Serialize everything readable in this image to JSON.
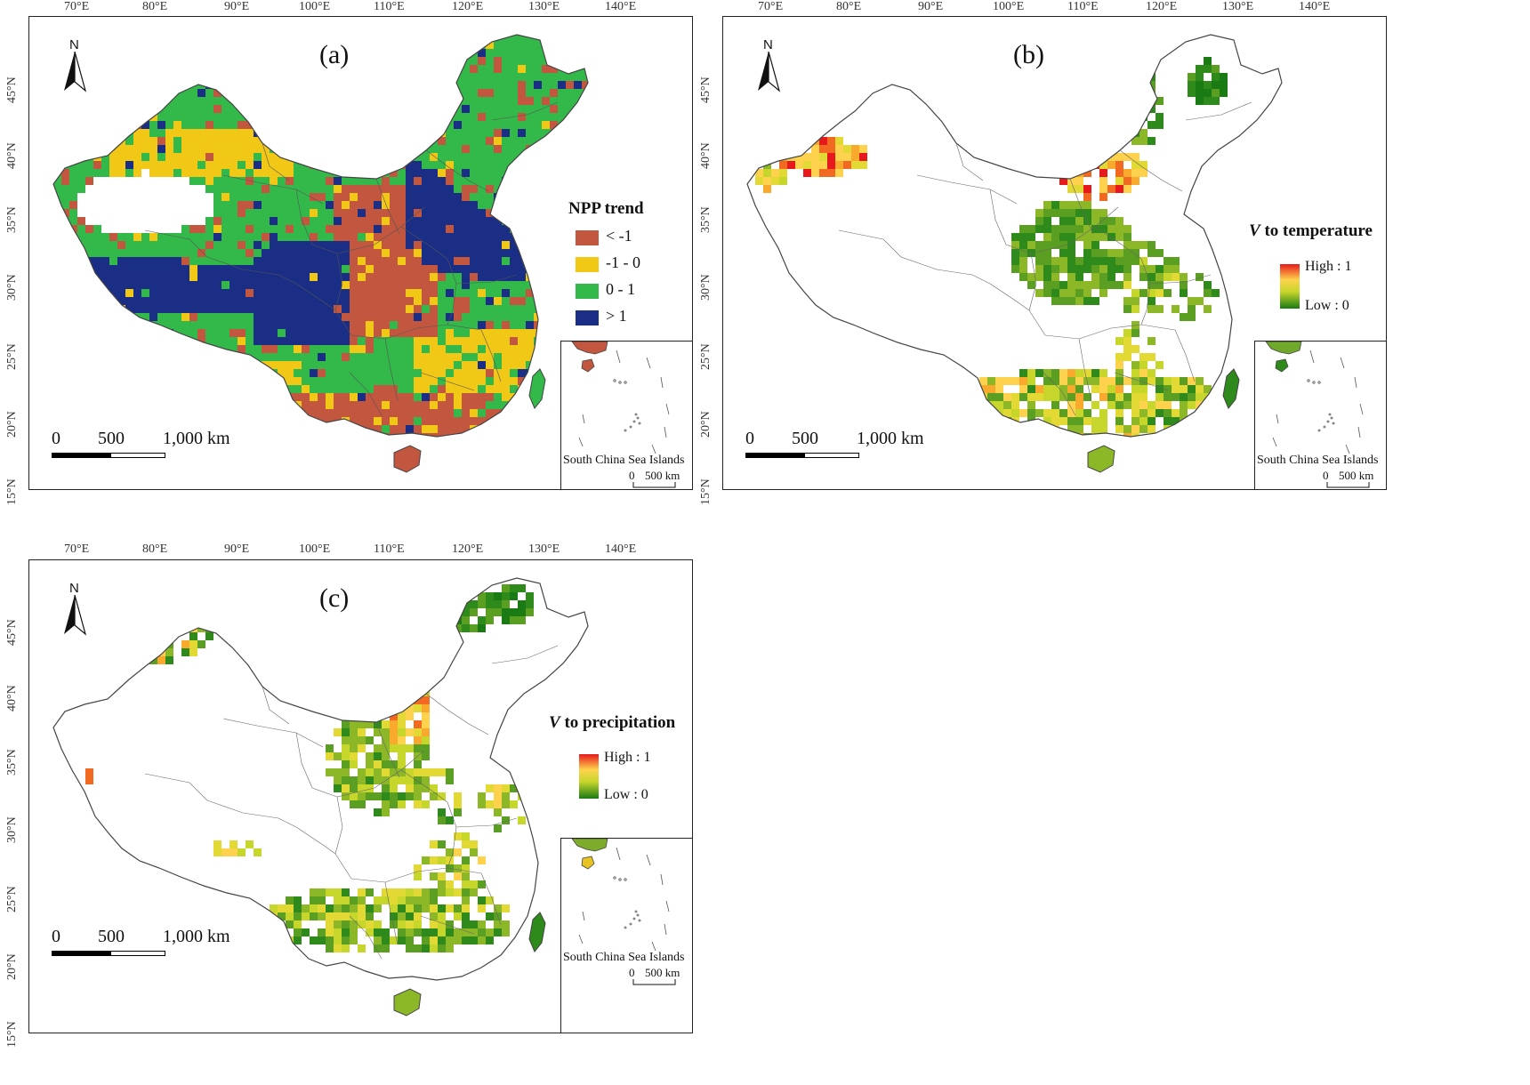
{
  "colors": {
    "npp_lt_neg1": "#c3563f",
    "npp_neg1_0": "#f2c817",
    "npp_0_1": "#33b94a",
    "npp_gt1": "#1a2e86",
    "gradient_high": "#e8191c",
    "gradient_low": "#1a7a14",
    "boundary": "#444444"
  },
  "axes": {
    "lon_labels": [
      "70°E",
      "80°E",
      "90°E",
      "100°E",
      "110°E",
      "120°E",
      "130°E",
      "140°E"
    ],
    "lat_labels": [
      "45°N",
      "40°N",
      "35°N",
      "30°N",
      "25°N",
      "20°N",
      "15°N"
    ]
  },
  "north_arrow": {
    "label": "N"
  },
  "scale_bar": {
    "zero": "0",
    "mid": "500",
    "end": "1,000 km"
  },
  "inset": {
    "title": "South China Sea Islands",
    "scale_zero": "0",
    "scale_end": "500 km"
  },
  "panels": {
    "a": {
      "letter": "(a)",
      "legend_title": "NPP trend",
      "legend": [
        "< -1",
        "-1 - 0",
        "0 - 1",
        "> 1"
      ]
    },
    "b": {
      "letter": "(b)",
      "legend_symbol": "V",
      "legend_title": " to temperature",
      "high": "High : 1",
      "low": "Low : 0"
    },
    "c": {
      "letter": "(c)",
      "legend_symbol": "V",
      "legend_title": " to precipitation",
      "high": "High : 1",
      "low": "Low : 0"
    }
  }
}
